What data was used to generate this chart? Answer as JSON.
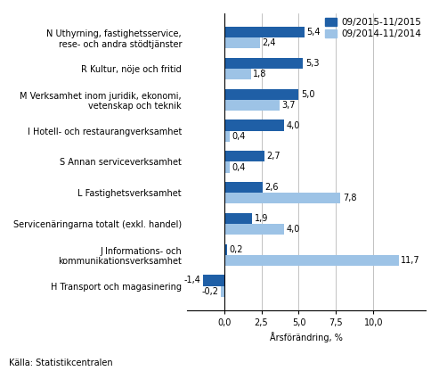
{
  "categories": [
    "N Uthyrning, fastighetsservice,\nrese- och andra stödtjänster",
    "R Kultur, nöje och fritid",
    "M Verksamhet inom juridik, ekonomi,\nvetenskap och teknik",
    "I Hotell- och restaurangverksamhet",
    "S Annan serviceverksamhet",
    "L Fastighetsverksamhet",
    "Servicenäringarna totalt (exkl. handel)",
    "J Informations- och\nkommunikationsverksamhet",
    "H Transport och magasinering"
  ],
  "series1_values": [
    5.4,
    5.3,
    5.0,
    4.0,
    2.7,
    2.6,
    1.9,
    0.2,
    -1.4
  ],
  "series2_values": [
    2.4,
    1.8,
    3.7,
    0.4,
    0.4,
    7.8,
    4.0,
    11.7,
    -0.2
  ],
  "series1_color": "#1F5FA6",
  "series2_color": "#9DC3E6",
  "series1_label": "09/2015-11/2015",
  "series2_label": "09/2014-11/2014",
  "xlabel": "Årsförändring, %",
  "source": "Källa: Statistikcentralen",
  "xlim": [
    -2.5,
    13.5
  ],
  "xticks": [
    0.0,
    2.5,
    5.0,
    7.5,
    10.0
  ],
  "xtick_labels": [
    "0,0",
    "2,5",
    "5,0",
    "7,5",
    "10,0"
  ],
  "bar_height": 0.35,
  "value_fontsize": 7.0,
  "label_fontsize": 7.0,
  "legend_fontsize": 7.5
}
